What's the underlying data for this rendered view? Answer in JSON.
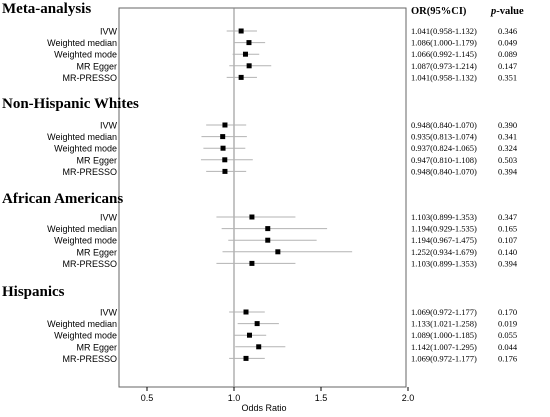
{
  "header": {
    "or_label": "OR(95%CI)",
    "p_label_italic": "p",
    "p_label_rest": "-value"
  },
  "chart_data": {
    "type": "forest",
    "xlabel": "Odds Ratio",
    "xlim": [
      0.5,
      2.0
    ],
    "xticks": [
      0.5,
      1.0,
      1.5,
      2.0
    ],
    "xtick_labels": [
      "0.5",
      "1.0",
      "1.5",
      "2.0"
    ],
    "reference_line": 1.0,
    "grid": false,
    "groups": [
      {
        "name": "Meta-analysis",
        "rows": [
          {
            "method": "IVW",
            "or": 1.041,
            "lo": 0.958,
            "hi": 1.132,
            "ci_text": "1.041(0.958-1.132)",
            "p": "0.346"
          },
          {
            "method": "Weighted median",
            "or": 1.086,
            "lo": 1.0,
            "hi": 1.179,
            "ci_text": "1.086(1.000-1.179)",
            "p": "0.049"
          },
          {
            "method": "Weighted mode",
            "or": 1.066,
            "lo": 0.992,
            "hi": 1.145,
            "ci_text": "1.066(0.992-1.145)",
            "p": "0.089"
          },
          {
            "method": "MR Egger",
            "or": 1.087,
            "lo": 0.973,
            "hi": 1.214,
            "ci_text": "1.087(0.973-1.214)",
            "p": "0.147"
          },
          {
            "method": "MR-PRESSO",
            "or": 1.041,
            "lo": 0.958,
            "hi": 1.132,
            "ci_text": "1.041(0.958-1.132)",
            "p": "0.351"
          }
        ]
      },
      {
        "name": "Non-Hispanic Whites",
        "rows": [
          {
            "method": "IVW",
            "or": 0.948,
            "lo": 0.84,
            "hi": 1.07,
            "ci_text": "0.948(0.840-1.070)",
            "p": "0.390"
          },
          {
            "method": "Weighted median",
            "or": 0.935,
            "lo": 0.813,
            "hi": 1.074,
            "ci_text": "0.935(0.813-1.074)",
            "p": "0.341"
          },
          {
            "method": "Weighted mode",
            "or": 0.937,
            "lo": 0.824,
            "hi": 1.065,
            "ci_text": "0.937(0.824-1.065)",
            "p": "0.324"
          },
          {
            "method": "MR Egger",
            "or": 0.947,
            "lo": 0.81,
            "hi": 1.108,
            "ci_text": "0.947(0.810-1.108)",
            "p": "0.503"
          },
          {
            "method": "MR-PRESSO",
            "or": 0.948,
            "lo": 0.84,
            "hi": 1.07,
            "ci_text": "0.948(0.840-1.070)",
            "p": "0.394"
          }
        ]
      },
      {
        "name": "African Americans",
        "rows": [
          {
            "method": "IVW",
            "or": 1.103,
            "lo": 0.899,
            "hi": 1.353,
            "ci_text": "1.103(0.899-1.353)",
            "p": "0.347"
          },
          {
            "method": "Weighted median",
            "or": 1.194,
            "lo": 0.929,
            "hi": 1.535,
            "ci_text": "1.194(0.929-1.535)",
            "p": "0.165"
          },
          {
            "method": "Weighted mode",
            "or": 1.194,
            "lo": 0.967,
            "hi": 1.475,
            "ci_text": "1.194(0.967-1.475)",
            "p": "0.107"
          },
          {
            "method": "MR Egger",
            "or": 1.252,
            "lo": 0.934,
            "hi": 1.679,
            "ci_text": "1.252(0.934-1.679)",
            "p": "0.140"
          },
          {
            "method": "MR-PRESSO",
            "or": 1.103,
            "lo": 0.899,
            "hi": 1.353,
            "ci_text": "1.103(0.899-1.353)",
            "p": "0.394"
          }
        ]
      },
      {
        "name": "Hispanics",
        "rows": [
          {
            "method": "IVW",
            "or": 1.069,
            "lo": 0.972,
            "hi": 1.177,
            "ci_text": "1.069(0.972-1.177)",
            "p": "0.170"
          },
          {
            "method": "Weighted median",
            "or": 1.133,
            "lo": 1.021,
            "hi": 1.258,
            "ci_text": "1.133(1.021-1.258)",
            "p": "0.019"
          },
          {
            "method": "Weighted mode",
            "or": 1.089,
            "lo": 1.0,
            "hi": 1.185,
            "ci_text": "1.089(1.000-1.185)",
            "p": "0.055"
          },
          {
            "method": "MR Egger",
            "or": 1.142,
            "lo": 1.007,
            "hi": 1.295,
            "ci_text": "1.142(1.007-1.295)",
            "p": "0.044"
          },
          {
            "method": "MR-PRESSO",
            "or": 1.069,
            "lo": 0.972,
            "hi": 1.177,
            "ci_text": "1.069(0.972-1.177)",
            "p": "0.176"
          }
        ]
      }
    ]
  },
  "colors": {
    "ci_line": "#b3b3b3",
    "point": "#000000",
    "frame": "#666666",
    "reference_line": "#888888"
  }
}
